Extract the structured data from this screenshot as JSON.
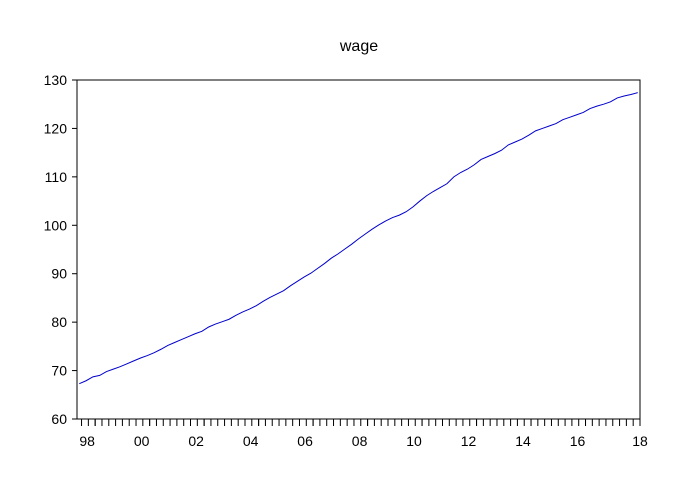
{
  "chart_data": {
    "type": "line",
    "title": "wage",
    "xlabel": "",
    "ylabel": "",
    "ylim": [
      60,
      130
    ],
    "xlim": [
      "1997-05",
      "2018-01"
    ],
    "y_ticks": [
      60,
      70,
      80,
      90,
      100,
      110,
      120,
      130
    ],
    "x_ticks": [
      {
        "label": "98",
        "date": "1998-01"
      },
      {
        "label": "00",
        "date": "2000-01"
      },
      {
        "label": "02",
        "date": "2002-01"
      },
      {
        "label": "04",
        "date": "2004-01"
      },
      {
        "label": "06",
        "date": "2006-01"
      },
      {
        "label": "08",
        "date": "2008-01"
      },
      {
        "label": "10",
        "date": "2010-01"
      },
      {
        "label": "12",
        "date": "2012-01"
      },
      {
        "label": "14",
        "date": "2014-01"
      },
      {
        "label": "16",
        "date": "2016-01"
      },
      {
        "label": "18",
        "date": "2018-01"
      }
    ],
    "grid": false,
    "line_color": "#0000cc",
    "series": [
      {
        "x": [
          "1997-06",
          "1997-09",
          "1997-12",
          "1998-03",
          "1998-06",
          "1998-09",
          "1998-12",
          "1999-03",
          "1999-06",
          "1999-09",
          "1999-12",
          "2000-03",
          "2000-06",
          "2000-09",
          "2000-12",
          "2001-03",
          "2001-06",
          "2001-09",
          "2001-12",
          "2002-03",
          "2002-06",
          "2002-09",
          "2002-12",
          "2003-03",
          "2003-06",
          "2003-09",
          "2003-12",
          "2004-03",
          "2004-06",
          "2004-09",
          "2004-12",
          "2005-03",
          "2005-06",
          "2005-09",
          "2005-12",
          "2006-03",
          "2006-06",
          "2006-09",
          "2006-12",
          "2007-03",
          "2007-06",
          "2007-09",
          "2007-12",
          "2008-03",
          "2008-06",
          "2008-09",
          "2008-12",
          "2009-03",
          "2009-06",
          "2009-09",
          "2009-12",
          "2010-03",
          "2010-06",
          "2010-09",
          "2010-12",
          "2011-03",
          "2011-06",
          "2011-09",
          "2011-12",
          "2012-03",
          "2012-06",
          "2012-09",
          "2012-12",
          "2013-03",
          "2013-06",
          "2013-09",
          "2013-12",
          "2014-03",
          "2014-06",
          "2014-09",
          "2014-12",
          "2015-03",
          "2015-06",
          "2015-09",
          "2015-12",
          "2016-03",
          "2016-06",
          "2016-09",
          "2016-12",
          "2017-03",
          "2017-06",
          "2017-09",
          "2017-12"
        ],
        "values": [
          67.3,
          67.9,
          68.7,
          69.0,
          69.8,
          70.3,
          70.8,
          71.4,
          72.0,
          72.6,
          73.1,
          73.7,
          74.4,
          75.2,
          75.8,
          76.4,
          77.0,
          77.6,
          78.1,
          79.0,
          79.6,
          80.1,
          80.6,
          81.4,
          82.1,
          82.7,
          83.4,
          84.3,
          85.1,
          85.8,
          86.5,
          87.5,
          88.4,
          89.3,
          90.1,
          91.1,
          92.1,
          93.2,
          94.1,
          95.1,
          96.1,
          97.2,
          98.2,
          99.2,
          100.1,
          100.9,
          101.6,
          102.1,
          102.8,
          103.8,
          105.0,
          106.1,
          107.0,
          107.8,
          108.6,
          110.0,
          110.9,
          111.6,
          112.5,
          113.6,
          114.2,
          114.8,
          115.5,
          116.6,
          117.2,
          117.8,
          118.6,
          119.5,
          120.0,
          120.5,
          121.0,
          121.8,
          122.3,
          122.8,
          123.3,
          124.1,
          124.6,
          125.0,
          125.5,
          126.3,
          126.7,
          127.0,
          127.4
        ]
      }
    ]
  }
}
